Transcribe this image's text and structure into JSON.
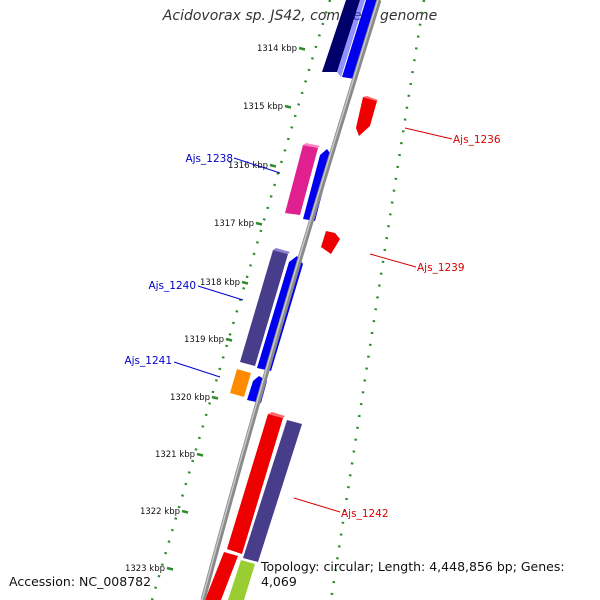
{
  "title": "Acidovorax sp. JS42, complete genome",
  "footer": {
    "accession": "Accession: NC_008782",
    "summary": "Topology: circular; Length: 4,448,856 bp; Genes: 4,069"
  },
  "ticks": [
    "1314 kbp",
    "1315 kbp",
    "1316 kbp",
    "1317 kbp",
    "1318 kbp",
    "1319 kbp",
    "1320 kbp",
    "1321 kbp",
    "1322 kbp",
    "1323 kbp"
  ],
  "gene_labels": [
    {
      "text": "Ajs_1236",
      "color": "#dd0000"
    },
    {
      "text": "Ajs_1238",
      "color": "#0000cc"
    },
    {
      "text": "Ajs_1239",
      "color": "#dd0000"
    },
    {
      "text": "Ajs_1240",
      "color": "#0000cc"
    },
    {
      "text": "Ajs_1241",
      "color": "#0000cc"
    },
    {
      "text": "Ajs_1242",
      "color": "#dd0000"
    }
  ],
  "colors": {
    "backbone": "#8a8a8a",
    "dotted_track": "#2e8b2e",
    "navy": "#00006b",
    "blue": "#0000ee",
    "magenta": "#e0208f",
    "slate": "#483d8b",
    "red": "#ee0000",
    "orange": "#ff8c00",
    "lime": "#9acd32"
  }
}
